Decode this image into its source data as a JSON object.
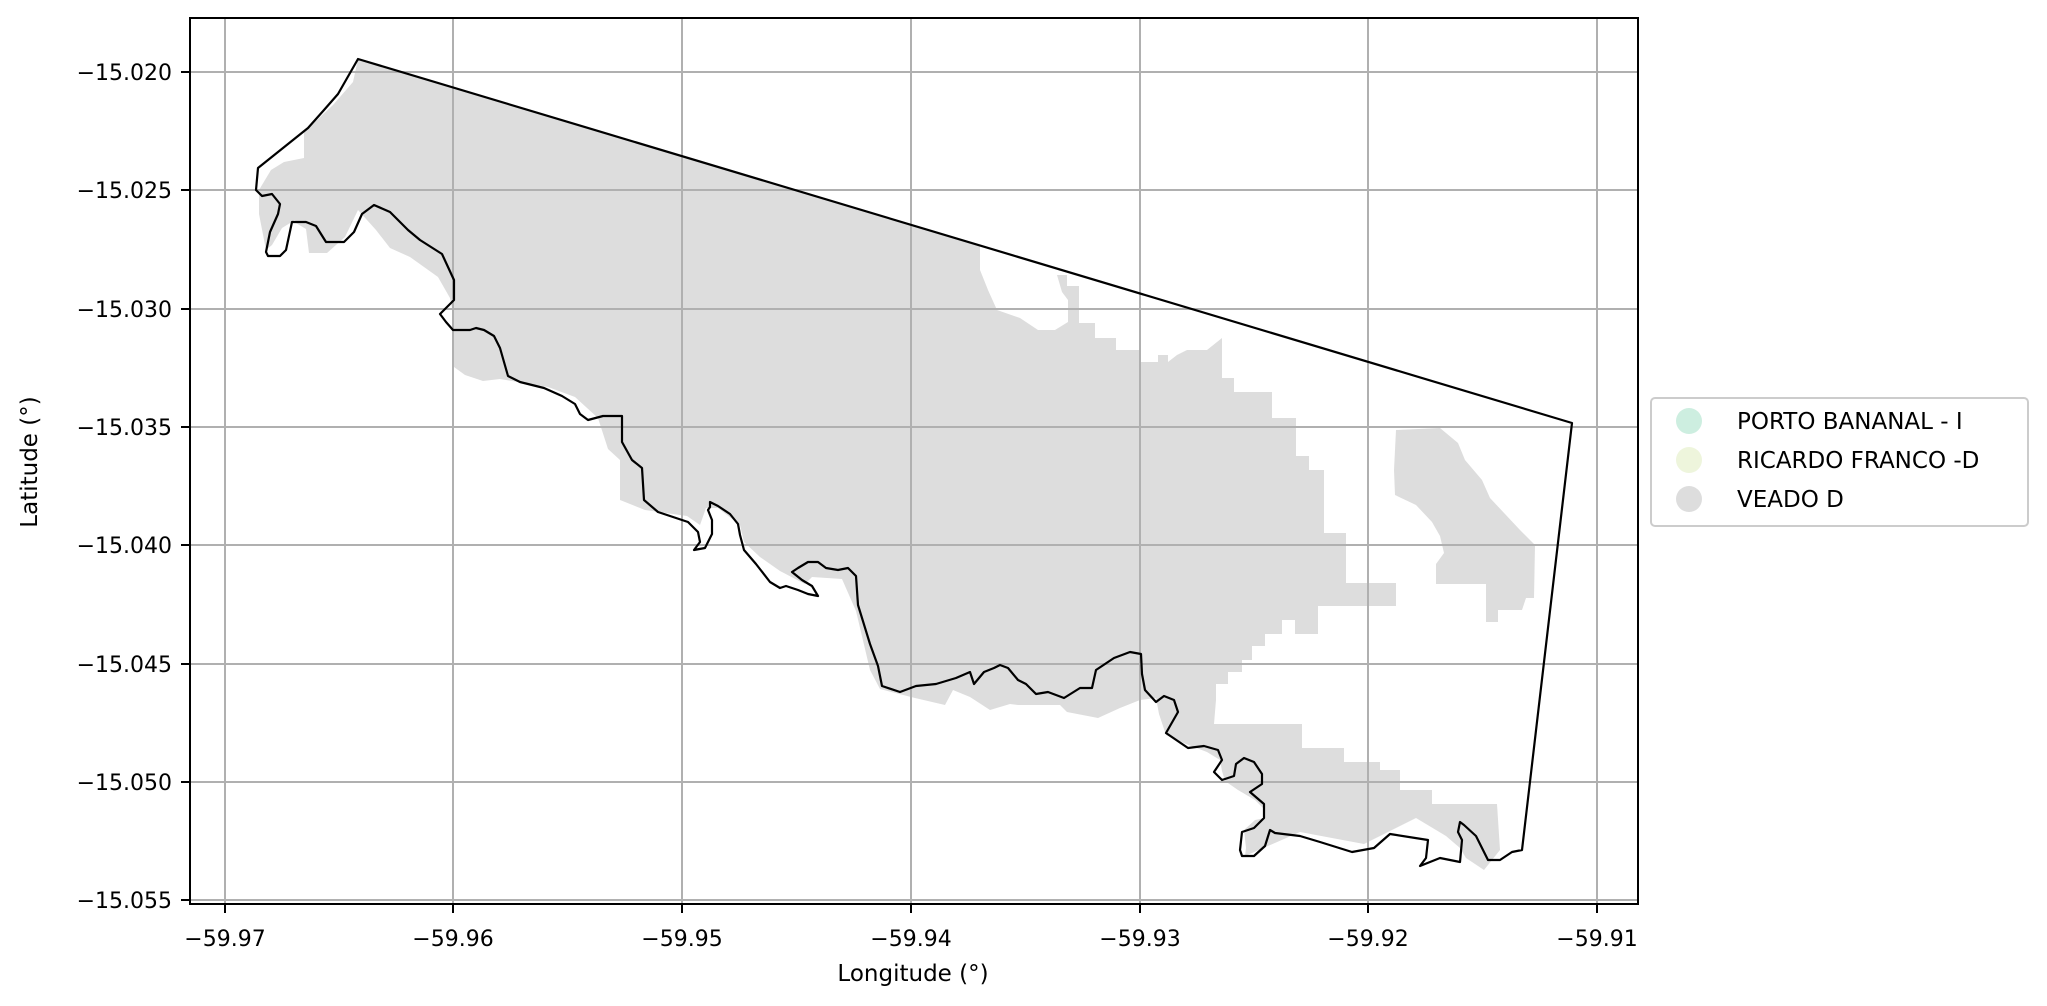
{
  "map": {
    "xlabel": "Longitude (°)",
    "ylabel": "Latitude (°)",
    "x_ticks": [
      "−59.97",
      "−59.96",
      "−59.95",
      "−59.94",
      "−59.93",
      "−59.92",
      "−59.91"
    ],
    "y_ticks": [
      "−15.020",
      "−15.025",
      "−15.030",
      "−15.035",
      "−15.040",
      "−15.045",
      "−15.050",
      "−15.055"
    ],
    "grid": true,
    "legend": {
      "placement": "center-right",
      "items": [
        {
          "label": "PORTO BANANAL - I",
          "color": "#cdeee0"
        },
        {
          "label": "RICARDO FRANCO -D",
          "color": "#eef5dc"
        },
        {
          "label": "VEADO D",
          "color": "#dddddd"
        }
      ]
    },
    "colors": {
      "veado_d_fill": "#dddddd",
      "boundary": "#000000",
      "grid": "#b0b0b0"
    }
  }
}
